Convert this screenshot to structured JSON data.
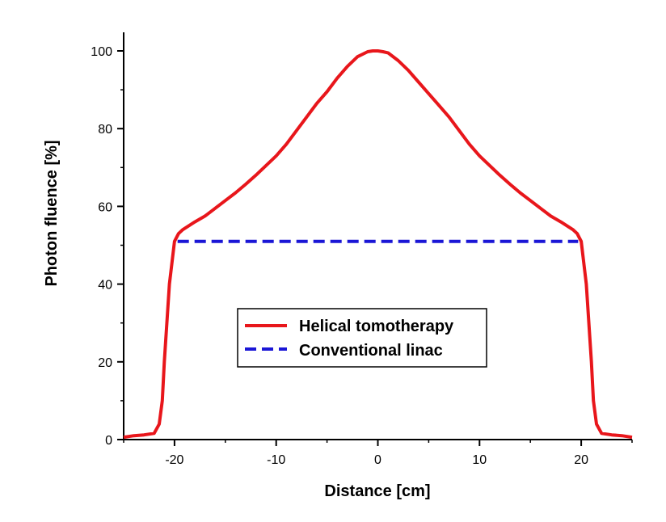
{
  "chart_data": {
    "type": "line",
    "title": "",
    "xlabel": "Distance [cm]",
    "ylabel": "Photon fluence [%]",
    "xlim": [
      -25,
      25
    ],
    "ylim": [
      0,
      105
    ],
    "x_ticks": [
      -20,
      -10,
      0,
      10,
      20
    ],
    "y_ticks": [
      0,
      20,
      40,
      60,
      80,
      100
    ],
    "x_tick_labels": [
      "-20",
      "-10",
      "0",
      "10",
      "20"
    ],
    "y_tick_labels": [
      "0",
      "20",
      "40",
      "60",
      "80",
      "100"
    ],
    "grid": false,
    "legend_position": "center",
    "series": [
      {
        "name": "Helical tomotherapy",
        "color": "#e8161b",
        "style": "solid",
        "x": [
          -25,
          -24,
          -23,
          -22,
          -21.5,
          -21.2,
          -21,
          -20.5,
          -20,
          -19.6,
          -19.2,
          -18,
          -17,
          -16,
          -15,
          -14,
          -13,
          -12,
          -11,
          -10,
          -9,
          -8,
          -7,
          -6,
          -5,
          -4,
          -3,
          -2,
          -1,
          -0.5,
          0,
          0.5,
          1,
          2,
          3,
          4,
          5,
          6,
          7,
          8,
          9,
          10,
          11,
          12,
          13,
          14,
          15,
          16,
          17,
          18,
          19.2,
          19.6,
          20,
          20.5,
          21,
          21.2,
          21.5,
          22,
          23,
          24,
          25
        ],
        "y": [
          0.6,
          1.0,
          1.2,
          1.6,
          4,
          10,
          20,
          40,
          51,
          53,
          54,
          56,
          57.5,
          59.5,
          61.5,
          63.5,
          65.7,
          68,
          70.5,
          73,
          76,
          79.5,
          83,
          86.5,
          89.5,
          93,
          96,
          98.5,
          99.8,
          100,
          100,
          99.8,
          99.5,
          97.5,
          95,
          92,
          89,
          86,
          83,
          79.5,
          76,
          73,
          70.5,
          68,
          65.7,
          63.5,
          61.5,
          59.5,
          57.5,
          56,
          54,
          53,
          51,
          40,
          20,
          10,
          4,
          1.6,
          1.2,
          1.0,
          0.6
        ]
      },
      {
        "name": "Conventional linac",
        "color": "#1a16d6",
        "style": "dashed",
        "x": [
          -19.7,
          19.7
        ],
        "y": [
          51,
          51
        ]
      }
    ]
  }
}
